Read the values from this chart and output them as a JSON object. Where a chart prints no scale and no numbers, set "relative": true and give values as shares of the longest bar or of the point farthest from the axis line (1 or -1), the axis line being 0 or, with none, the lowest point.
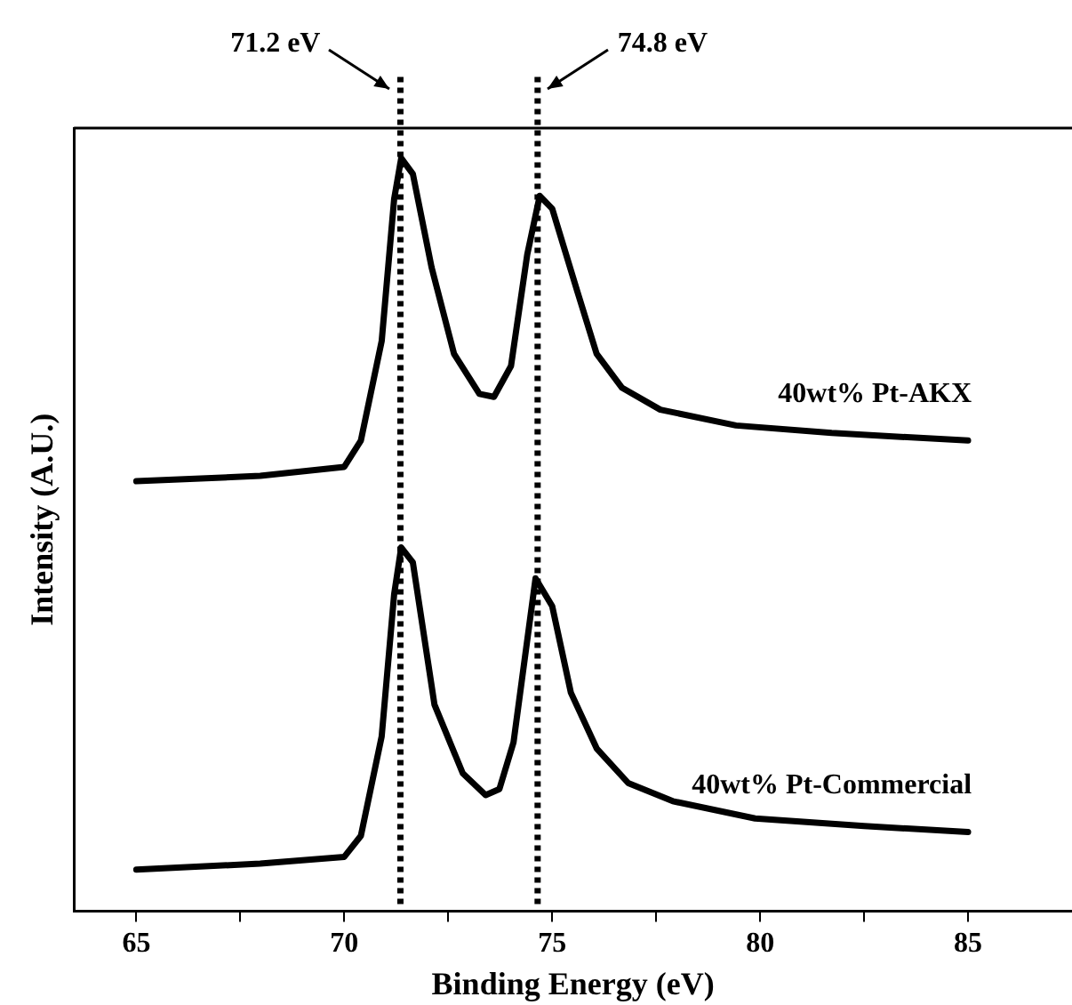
{
  "chart_data": {
    "type": "line",
    "xlabel": "Binding Energy (eV)",
    "ylabel": "Intensity (A.U.)",
    "relative": true,
    "xlim": [
      63.5,
      87.5
    ],
    "xticks": [
      65,
      {
        "value": 67.5,
        "label": null
      },
      70,
      {
        "value": 72.5,
        "label": null
      },
      75,
      {
        "value": 77.5,
        "label": null
      },
      80,
      {
        "value": 82.5,
        "label": null
      },
      85
    ],
    "grid": false,
    "legend": false,
    "marker": "none",
    "line_style": "solid",
    "ref_lines": [
      {
        "axis": "x",
        "value": 71.35,
        "label": "71.2 eV",
        "line_style": "dotted",
        "color": "#000000"
      },
      {
        "axis": "x",
        "value": 74.65,
        "label": "74.8 eV",
        "line_style": "dotted",
        "color": "#000000"
      }
    ],
    "series": [
      {
        "name": "40wt% Pt-AKX",
        "color": "#000000",
        "x": [
          65,
          67.98,
          70,
          70.4,
          70.9,
          71.2,
          71.37,
          71.65,
          72.1,
          72.64,
          73.25,
          73.6,
          74.01,
          74.4,
          74.7,
          75,
          75.61,
          76.07,
          76.68,
          77.6,
          79.42,
          81.72,
          85
        ],
        "values": [
          0.571,
          0.578,
          0.59,
          0.625,
          0.757,
          0.946,
          1,
          0.979,
          0.855,
          0.74,
          0.687,
          0.683,
          0.724,
          0.872,
          0.95,
          0.933,
          0.822,
          0.74,
          0.695,
          0.666,
          0.645,
          0.635,
          0.625
        ]
      },
      {
        "name": "40wt% Pt-Commercial",
        "color": "#000000",
        "x": [
          65,
          67.98,
          70,
          70.4,
          70.9,
          71.2,
          71.37,
          71.65,
          72.17,
          72.85,
          73.4,
          73.73,
          74.07,
          74.6,
          75,
          75.45,
          76.07,
          76.83,
          77.9,
          79.88,
          82.5,
          85
        ],
        "values": [
          0.055,
          0.063,
          0.072,
          0.1,
          0.232,
          0.421,
          0.483,
          0.463,
          0.274,
          0.183,
          0.154,
          0.162,
          0.224,
          0.442,
          0.405,
          0.29,
          0.216,
          0.17,
          0.146,
          0.123,
          0.113,
          0.105
        ]
      }
    ]
  }
}
